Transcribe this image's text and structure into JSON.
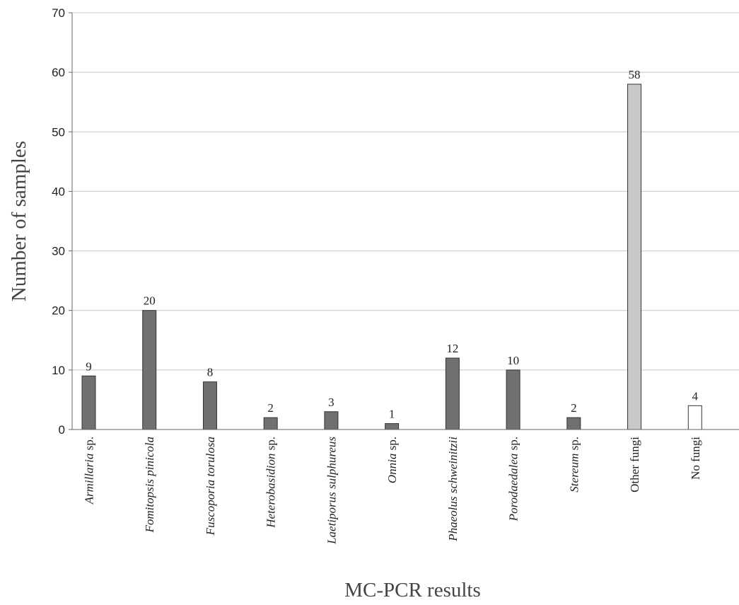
{
  "chart_data": {
    "type": "bar",
    "xlabel": "MC-PCR results",
    "ylabel": "Number of samples",
    "ylim": [
      0,
      70
    ],
    "yticks": [
      0,
      10,
      20,
      30,
      40,
      50,
      60,
      70
    ],
    "grid": "horizontal",
    "categories": [
      {
        "parts": [
          {
            "text": "Armillaria",
            "italic": true
          },
          {
            "text": " sp.",
            "italic": false
          }
        ]
      },
      {
        "parts": [
          {
            "text": "Fomitopsis pinicola",
            "italic": true
          }
        ]
      },
      {
        "parts": [
          {
            "text": "Fuscoporia torulosa",
            "italic": true
          }
        ]
      },
      {
        "parts": [
          {
            "text": "Heterobasidion",
            "italic": true
          },
          {
            "text": " sp.",
            "italic": false
          }
        ]
      },
      {
        "parts": [
          {
            "text": "Laetiporus sulphureus",
            "italic": true
          }
        ]
      },
      {
        "parts": [
          {
            "text": "Onnia",
            "italic": true
          },
          {
            "text": " sp.",
            "italic": false
          }
        ]
      },
      {
        "parts": [
          {
            "text": "Phaeolus schweinitzii",
            "italic": true
          }
        ]
      },
      {
        "parts": [
          {
            "text": "Porodaedalea",
            "italic": true
          },
          {
            "text": " sp.",
            "italic": false
          }
        ]
      },
      {
        "parts": [
          {
            "text": "Stereum",
            "italic": true
          },
          {
            "text": " sp.",
            "italic": false
          }
        ]
      },
      {
        "parts": [
          {
            "text": "Other fungi",
            "italic": false
          }
        ]
      },
      {
        "parts": [
          {
            "text": "No fungi",
            "italic": false
          }
        ]
      }
    ],
    "values": [
      9,
      20,
      8,
      2,
      3,
      1,
      12,
      10,
      2,
      58,
      4
    ],
    "data_labels": [
      "9",
      "20",
      "8",
      "2",
      "3",
      "1",
      "12",
      "10",
      "2",
      "58",
      "4"
    ],
    "bar_colors": [
      "#707070",
      "#707070",
      "#707070",
      "#707070",
      "#707070",
      "#707070",
      "#707070",
      "#707070",
      "#707070",
      "#c8c8c8",
      "#ffffff"
    ]
  }
}
